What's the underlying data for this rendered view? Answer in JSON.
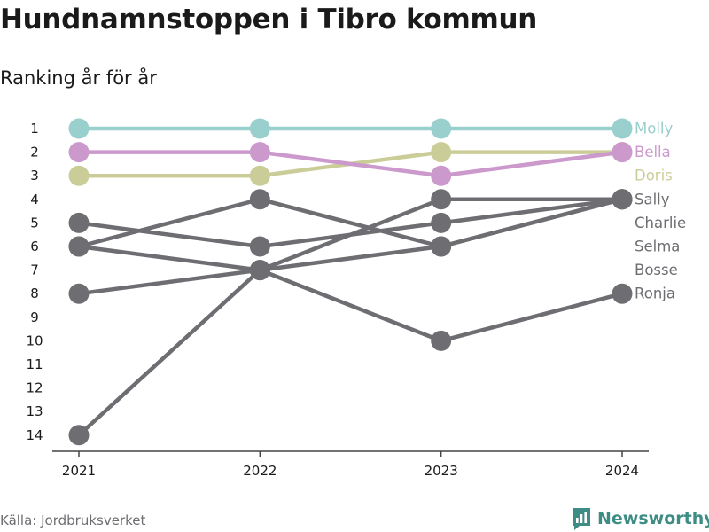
{
  "title": "Hundnamnstoppen i Tibro kommun",
  "subtitle": "Ranking år för år",
  "source": "Källa: Jordbruksverket",
  "brand": {
    "name": "Newsworthy",
    "icon": "bar-chart-logo-icon",
    "color": "#3e8d85"
  },
  "chart_data": {
    "type": "line",
    "title": "Hundnamnstoppen i Tibro kommun",
    "subtitle": "Ranking år för år",
    "x": [
      "2021",
      "2022",
      "2023",
      "2024"
    ],
    "y_ticks": [
      1,
      2,
      3,
      4,
      5,
      6,
      7,
      8,
      9,
      10,
      11,
      12,
      13,
      14
    ],
    "ylim": [
      1,
      14
    ],
    "y_reversed": true,
    "grid": false,
    "legend": "direct labels at right end of lines",
    "series": [
      {
        "name": "Molly",
        "values": [
          1,
          1,
          1,
          1
        ],
        "color": "#99cfcd",
        "highlight": true
      },
      {
        "name": "Bella",
        "values": [
          2,
          2,
          3,
          2
        ],
        "color": "#cc99cc",
        "highlight": true
      },
      {
        "name": "Doris",
        "values": [
          3,
          3,
          2,
          2
        ],
        "color": "#cbcd99",
        "highlight": true
      },
      {
        "name": "Sally",
        "values": [
          6,
          7,
          4,
          4
        ],
        "color": "#6e6d72",
        "highlight": false
      },
      {
        "name": "Charlie",
        "values": [
          5,
          6,
          5,
          4
        ],
        "color": "#6e6d72",
        "highlight": false
      },
      {
        "name": "Selma",
        "values": [
          6,
          4,
          6,
          4
        ],
        "color": "#6e6d72",
        "highlight": false
      },
      {
        "name": "Bosse",
        "values": [
          14,
          7,
          6,
          4
        ],
        "color": "#6e6d72",
        "highlight": false
      },
      {
        "name": "Ronja",
        "values": [
          8,
          7,
          10,
          8
        ],
        "color": "#6e6d72",
        "highlight": false
      }
    ]
  }
}
